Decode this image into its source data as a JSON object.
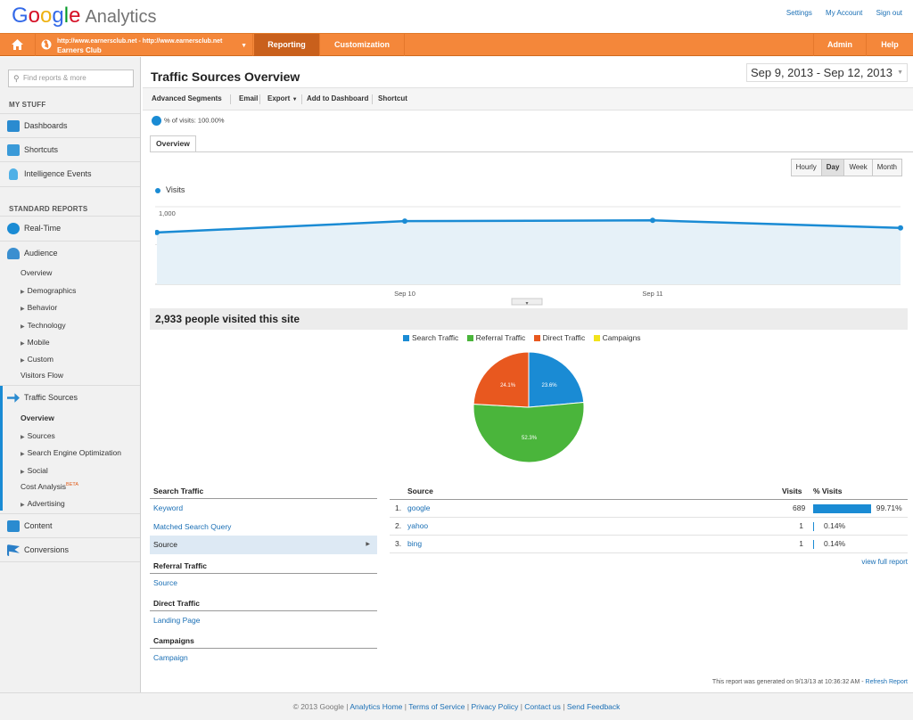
{
  "header": {
    "logo_google": "Google",
    "logo_product": "Analytics",
    "links": {
      "settings": "Settings",
      "my_account": "My Account",
      "sign_out": "Sign out"
    }
  },
  "nav": {
    "account_urls": "http://www.earnersclub.net - http://www.earnersclub.net",
    "account_name": "Earners Club",
    "reporting": "Reporting",
    "customization": "Customization",
    "admin": "Admin",
    "help": "Help"
  },
  "sidebar": {
    "search_placeholder": "Find reports & more",
    "my_stuff": "MY STUFF",
    "my_items": [
      "Dashboards",
      "Shortcuts",
      "Intelligence Events"
    ],
    "standard_reports": "STANDARD REPORTS",
    "realtime": "Real-Time",
    "audience": "Audience",
    "audience_sub": [
      "Overview",
      "Demographics",
      "Behavior",
      "Technology",
      "Mobile",
      "Custom",
      "Visitors Flow"
    ],
    "traffic_sources": "Traffic Sources",
    "traffic_sub": [
      "Overview",
      "Sources",
      "Search Engine Optimization",
      "Social",
      "Cost Analysis",
      "Advertising"
    ],
    "beta": "BETA",
    "content": "Content",
    "conversions": "Conversions"
  },
  "main": {
    "title": "Traffic Sources Overview",
    "date_range": "Sep 9, 2013 - Sep 12, 2013",
    "toolbar": [
      "Advanced Segments",
      "Email",
      "Export",
      "Add to Dashboard",
      "Shortcut"
    ],
    "segment_label": "% of visits: 100.00%",
    "tab": "Overview",
    "granularity": [
      "Hourly",
      "Day",
      "Week",
      "Month"
    ],
    "granularity_selected": "Day",
    "visited_text": "2,933 people visited this site"
  },
  "chart_data": [
    {
      "type": "area",
      "series": [
        {
          "name": "Visits",
          "values": [
            660,
            810,
            820,
            720
          ]
        }
      ],
      "x": [
        "Sep 9",
        "Sep 10",
        "Sep 11",
        "Sep 12"
      ],
      "tick_labels": [
        "Sep 10",
        "Sep 11"
      ],
      "y_ticks": [
        "1,000",
        "500"
      ],
      "ylim": [
        0,
        1000
      ],
      "color": "#1a8bd4"
    },
    {
      "type": "pie",
      "categories": [
        "Search Traffic",
        "Referral Traffic",
        "Direct Traffic",
        "Campaigns"
      ],
      "values": [
        23.6,
        52.3,
        24.1,
        0
      ],
      "labels": [
        "23.6%",
        "52.3%",
        "24.1%",
        ""
      ],
      "colors": [
        "#1a8bd4",
        "#4ab53b",
        "#e8581f",
        "#f2e31b"
      ]
    }
  ],
  "lists": {
    "search_traffic": "Search Traffic",
    "search_links": [
      "Keyword",
      "Matched Search Query",
      "Source"
    ],
    "referral_traffic": "Referral Traffic",
    "referral_links": [
      "Source"
    ],
    "direct_traffic": "Direct Traffic",
    "direct_links": [
      "Landing Page"
    ],
    "campaigns": "Campaigns",
    "campaign_links": [
      "Campaign"
    ]
  },
  "table": {
    "headers": [
      "Source",
      "Visits",
      "% Visits"
    ],
    "rows": [
      {
        "num": "1.",
        "source": "google",
        "visits": "689",
        "pct": "99.71%",
        "frac": 0.9971
      },
      {
        "num": "2.",
        "source": "yahoo",
        "visits": "1",
        "pct": "0.14%",
        "frac": 0.0014
      },
      {
        "num": "3.",
        "source": "bing",
        "visits": "1",
        "pct": "0.14%",
        "frac": 0.0014
      }
    ],
    "view_full": "view full report"
  },
  "report_note": {
    "text": "This report was generated on 9/13/13 at 10:36:32 AM - ",
    "link": "Refresh Report"
  },
  "footer": {
    "copyright": "© 2013 Google",
    "links": [
      "Analytics Home",
      "Terms of Service",
      "Privacy Policy",
      "Contact us",
      "Send Feedback"
    ]
  }
}
